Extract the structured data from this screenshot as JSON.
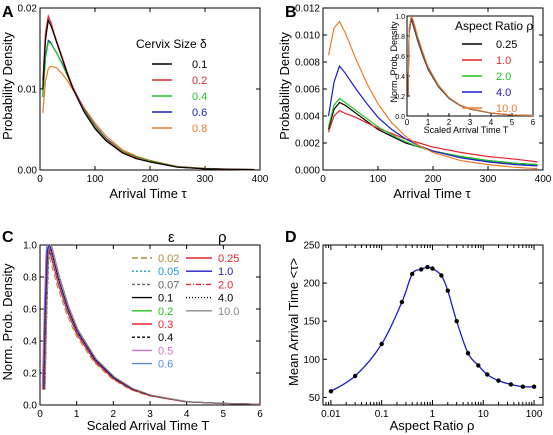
{
  "chart_data": [
    {
      "panel": "A",
      "type": "line",
      "xlabel": "Arrival Time τ",
      "ylabel": "Probability Density",
      "xlim": [
        0,
        400
      ],
      "ylim": [
        0,
        0.02
      ],
      "xticks": [
        "0",
        "100",
        "200",
        "300",
        "400"
      ],
      "yticks": [
        "0.00",
        "0.01",
        "0.02"
      ],
      "legend_title": "Cervix Size δ",
      "legend_position": "right",
      "series": [
        {
          "name": "0.1",
          "color": "#000000",
          "x": [
            5,
            10,
            15,
            20,
            25,
            30,
            40,
            50,
            60,
            80,
            100,
            120,
            150,
            175,
            200,
            250,
            300,
            350,
            390
          ],
          "y": [
            0.01,
            0.016,
            0.0185,
            0.0178,
            0.0168,
            0.0158,
            0.0138,
            0.0118,
            0.01,
            0.0072,
            0.0051,
            0.0036,
            0.0021,
            0.0014,
            0.001,
            0.00035,
            0.00015,
            8e-05,
            5e-05
          ]
        },
        {
          "name": "0.2",
          "color": "#e4262c",
          "x": [
            5,
            10,
            15,
            20,
            25,
            30,
            40,
            50,
            60,
            80,
            100,
            120,
            150,
            175,
            200,
            250,
            300,
            350,
            390
          ],
          "y": [
            0.011,
            0.017,
            0.019,
            0.0182,
            0.017,
            0.016,
            0.014,
            0.012,
            0.0102,
            0.0073,
            0.0052,
            0.0037,
            0.0022,
            0.0015,
            0.001,
            0.00035,
            0.00015,
            8e-05,
            5e-05
          ]
        },
        {
          "name": "0.4",
          "color": "#22c322",
          "x": [
            5,
            10,
            15,
            20,
            25,
            30,
            40,
            50,
            60,
            80,
            100,
            120,
            150,
            175,
            200,
            250,
            300,
            350,
            390
          ],
          "y": [
            0.009,
            0.0138,
            0.0158,
            0.0156,
            0.015,
            0.0145,
            0.0131,
            0.0116,
            0.0101,
            0.0074,
            0.0054,
            0.0038,
            0.0023,
            0.0016,
            0.0011,
            0.0004,
            0.00017,
            8e-05,
            5e-05
          ]
        },
        {
          "name": "0.6",
          "color": "#1c1cc8",
          "x": [
            5,
            10,
            15,
            20,
            25,
            30,
            40,
            50,
            60,
            80,
            100,
            120,
            150,
            175,
            200,
            250,
            300,
            350,
            390
          ],
          "y": [
            0.009,
            0.014,
            0.016,
            0.0157,
            0.015,
            0.0145,
            0.0132,
            0.0117,
            0.0102,
            0.0075,
            0.0055,
            0.0039,
            0.0023,
            0.0016,
            0.0011,
            0.0004,
            0.00017,
            8e-05,
            5e-05
          ]
        },
        {
          "name": "0.8",
          "color": "#f07a28",
          "x": [
            5,
            10,
            15,
            20,
            25,
            30,
            40,
            50,
            60,
            80,
            100,
            120,
            150,
            175,
            200,
            250,
            300,
            350,
            390
          ],
          "y": [
            0.007,
            0.011,
            0.0125,
            0.0128,
            0.0127,
            0.0126,
            0.0119,
            0.011,
            0.0099,
            0.0077,
            0.0058,
            0.0042,
            0.0025,
            0.0017,
            0.0012,
            0.00045,
            0.0002,
            0.0001,
            6e-05
          ]
        }
      ]
    },
    {
      "panel": "B",
      "type": "line",
      "xlabel": "Arrival Time τ",
      "ylabel": "Probability Density",
      "xlim": [
        0,
        400
      ],
      "ylim": [
        0,
        0.012
      ],
      "xticks": [
        "0",
        "100",
        "200",
        "300",
        "400"
      ],
      "yticks": [
        "0.000",
        "0.002",
        "0.004",
        "0.006",
        "0.008",
        "0.010",
        "0.012"
      ],
      "legend_title": "Aspect Ratio ρ",
      "legend_position": "top-right",
      "series": [
        {
          "name": "0.25",
          "color": "#000000",
          "x": [
            10,
            20,
            30,
            40,
            60,
            80,
            100,
            125,
            150,
            175,
            200,
            250,
            300,
            350,
            390
          ],
          "y": [
            0.003,
            0.0045,
            0.005,
            0.0048,
            0.0042,
            0.0036,
            0.003,
            0.0025,
            0.002,
            0.0017,
            0.0014,
            0.001,
            0.0007,
            0.0005,
            0.0004
          ]
        },
        {
          "name": "1.0",
          "color": "#e4262c",
          "x": [
            10,
            20,
            30,
            40,
            60,
            80,
            100,
            125,
            150,
            175,
            200,
            250,
            300,
            350,
            390
          ],
          "y": [
            0.0028,
            0.004,
            0.0044,
            0.0042,
            0.0039,
            0.0035,
            0.0031,
            0.0027,
            0.0023,
            0.002,
            0.0017,
            0.0013,
            0.001,
            0.0008,
            0.0006
          ]
        },
        {
          "name": "2.0",
          "color": "#22c322",
          "x": [
            10,
            20,
            30,
            40,
            60,
            80,
            100,
            125,
            150,
            175,
            200,
            250,
            300,
            350,
            390
          ],
          "y": [
            0.0032,
            0.0048,
            0.0053,
            0.005,
            0.0044,
            0.0038,
            0.0032,
            0.0026,
            0.0021,
            0.0017,
            0.0014,
            0.001,
            0.0007,
            0.0005,
            0.0004
          ]
        },
        {
          "name": "4.0",
          "color": "#1c1cc8",
          "x": [
            10,
            20,
            30,
            40,
            60,
            80,
            100,
            125,
            150,
            175,
            200,
            250,
            300,
            350,
            390
          ],
          "y": [
            0.004,
            0.0065,
            0.0077,
            0.0072,
            0.006,
            0.0049,
            0.0039,
            0.003,
            0.0023,
            0.0018,
            0.0014,
            0.0009,
            0.0006,
            0.0004,
            0.0003
          ]
        },
        {
          "name": "10.0",
          "color": "#f07a28",
          "x": [
            10,
            20,
            30,
            40,
            60,
            80,
            100,
            125,
            150,
            175,
            200,
            250,
            300,
            350,
            390
          ],
          "y": [
            0.0085,
            0.0105,
            0.011,
            0.0102,
            0.0082,
            0.0064,
            0.0049,
            0.0035,
            0.0025,
            0.0018,
            0.0013,
            0.0007,
            0.0004,
            0.0002,
            0.0001
          ]
        }
      ],
      "inset": {
        "xlabel": "Scaled Arrival Time T",
        "ylabel": "Norm. Prob. Density",
        "xlim": [
          0,
          6
        ],
        "ylim": [
          0,
          1
        ],
        "xticks": [
          "0",
          "1",
          "2",
          "3",
          "4",
          "5",
          "6"
        ],
        "yticks": [
          "0.0",
          "0.2",
          "0.4",
          "0.6",
          "0.8",
          "1.0"
        ],
        "x": [
          0.05,
          0.1,
          0.2,
          0.3,
          0.5,
          0.75,
          1.0,
          1.5,
          2.0,
          2.5,
          3.0,
          4.0,
          5.0,
          6.0
        ],
        "y": [
          0.2,
          0.85,
          1.0,
          0.93,
          0.78,
          0.62,
          0.48,
          0.3,
          0.18,
          0.11,
          0.07,
          0.03,
          0.01,
          0.005
        ]
      }
    },
    {
      "panel": "C",
      "type": "line",
      "xlabel": "Scaled Arrival Time T",
      "ylabel": "Norm. Prob. Density",
      "xlim": [
        0,
        6
      ],
      "ylim": [
        0,
        1
      ],
      "xticks": [
        "0",
        "1",
        "2",
        "3",
        "4",
        "5",
        "6"
      ],
      "yticks": [
        "0.0",
        "0.2",
        "0.4",
        "0.6",
        "0.8",
        "1.0"
      ],
      "legend_titles": [
        "ε",
        "ρ"
      ],
      "legend_position": "right",
      "eps_series": [
        {
          "name": "0.02",
          "color": "#b08a3c",
          "dash": "6,3"
        },
        {
          "name": "0.05",
          "color": "#1c9ad6",
          "dash": "2,2"
        },
        {
          "name": "0.07",
          "color": "#666666",
          "dash": "3,2"
        },
        {
          "name": "0.1",
          "color": "#000000",
          "dash": ""
        },
        {
          "name": "0.2",
          "color": "#22c322",
          "dash": ""
        },
        {
          "name": "0.3",
          "color": "#e4262c",
          "dash": ""
        },
        {
          "name": "0.4",
          "color": "#000000",
          "dash": "3,2"
        },
        {
          "name": "0.5",
          "color": "#d070d0",
          "dash": ""
        },
        {
          "name": "0.6",
          "color": "#5a8ed8",
          "dash": ""
        }
      ],
      "rho_series": [
        {
          "name": "0.25",
          "color": "#e4262c",
          "dash": ""
        },
        {
          "name": "1.0",
          "color": "#1c1cc8",
          "dash": ""
        },
        {
          "name": "2.0",
          "color": "#e4262c",
          "dash": "5,2,1,2"
        },
        {
          "name": "4.0",
          "color": "#000000",
          "dash": "1,2"
        },
        {
          "name": "10.0",
          "color": "#888888",
          "dash": ""
        }
      ],
      "x": [
        0.1,
        0.15,
        0.2,
        0.25,
        0.3,
        0.4,
        0.5,
        0.75,
        1.0,
        1.5,
        2.0,
        2.5,
        3.0,
        4.0,
        5.0,
        6.0
      ],
      "y": [
        0.1,
        0.6,
        0.95,
        1.0,
        0.96,
        0.87,
        0.78,
        0.6,
        0.46,
        0.28,
        0.17,
        0.1,
        0.06,
        0.02,
        0.01,
        0.005
      ]
    },
    {
      "panel": "D",
      "type": "scatter",
      "xlabel": "Aspect Ratio ρ",
      "ylabel": "Mean Arrival Time <τ>",
      "xscale": "log",
      "xlim": [
        0.007,
        150
      ],
      "ylim": [
        40,
        250
      ],
      "xticks": [
        "0.01",
        "0.1",
        "1",
        "10",
        "100"
      ],
      "yticks": [
        "50",
        "100",
        "150",
        "200",
        "250"
      ],
      "x": [
        0.01,
        0.03,
        0.1,
        0.25,
        0.4,
        0.6,
        0.8,
        1.0,
        1.5,
        2.0,
        3.0,
        5.0,
        8.0,
        12,
        20,
        35,
        60,
        100
      ],
      "y": [
        58,
        78,
        120,
        175,
        212,
        218,
        221,
        219,
        210,
        190,
        150,
        108,
        92,
        80,
        72,
        67,
        64,
        64
      ]
    }
  ]
}
